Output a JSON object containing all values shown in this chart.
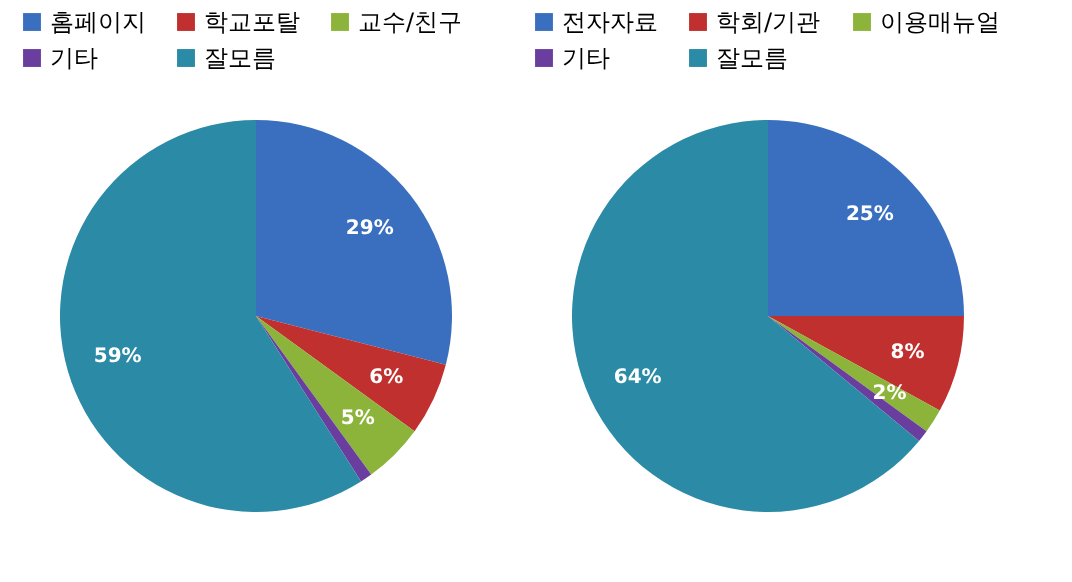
{
  "chart_data": [
    {
      "type": "pie",
      "categories": [
        "홈페이지",
        "학교포탈",
        "교수/친구",
        "기타",
        "잘모름"
      ],
      "values": [
        29,
        6,
        5,
        1,
        59
      ],
      "colors": [
        "#3a6fc0",
        "#c0302f",
        "#8db43a",
        "#6a3e9e",
        "#2b8aa5"
      ],
      "value_labels": [
        "29%",
        "6%",
        "5%",
        null,
        "59%"
      ],
      "legend": "top"
    },
    {
      "type": "pie",
      "categories": [
        "전자자료",
        "학회/기관",
        "이용매뉴얼",
        "기타",
        "잘모름"
      ],
      "values": [
        25,
        8,
        2,
        1,
        64
      ],
      "colors": [
        "#3a6fc0",
        "#c0302f",
        "#8db43a",
        "#6a3e9e",
        "#2b8aa5"
      ],
      "value_labels": [
        "25%",
        "8%",
        "2%",
        null,
        "64%"
      ],
      "legend": "top"
    }
  ]
}
